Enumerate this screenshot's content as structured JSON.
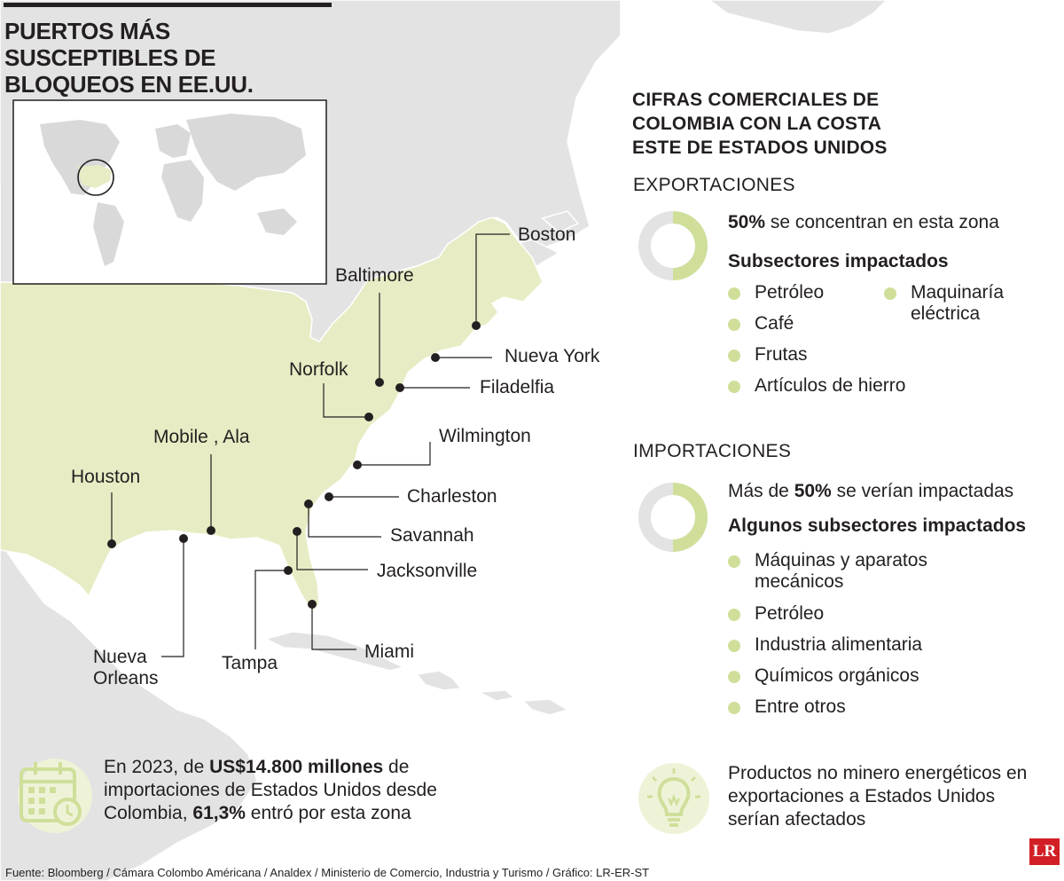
{
  "title": "PUERTOS MÁS SUSCEPTIBLES DE BLOQUEOS EN EE.UU.",
  "ports": [
    {
      "id": "boston",
      "name": "Boston"
    },
    {
      "id": "baltimore",
      "name": "Baltimore"
    },
    {
      "id": "nueva-york",
      "name": "Nueva York"
    },
    {
      "id": "norfolk",
      "name": "Norfolk"
    },
    {
      "id": "filadelfia",
      "name": "Filadelfia"
    },
    {
      "id": "wilmington",
      "name": "Wilmington"
    },
    {
      "id": "mobile",
      "name": "Mobile , Ala"
    },
    {
      "id": "houston",
      "name": "Houston"
    },
    {
      "id": "charleston",
      "name": "Charleston"
    },
    {
      "id": "savannah",
      "name": "Savannah"
    },
    {
      "id": "jacksonville",
      "name": "Jacksonville"
    },
    {
      "id": "nueva-orleans",
      "name": "Nueva Orleans"
    },
    {
      "id": "tampa",
      "name": "Tampa"
    },
    {
      "id": "miami",
      "name": "Miami"
    }
  ],
  "trade": {
    "heading": "CIFRAS COMERCIALES DE COLOMBIA CON LA COSTA ESTE DE ESTADOS UNIDOS",
    "exports": {
      "label": "EXPORTACIONES",
      "share_percent": 50,
      "stat_bold": "50%",
      "stat_rest": " se concentran en esta zona",
      "subtitle": "Subsectores impactados",
      "items_col1": [
        "Petróleo",
        "Café",
        "Frutas",
        "Artículos de hierro"
      ],
      "items_col2": [
        "Maquinaría eléctrica"
      ]
    },
    "imports": {
      "label": "IMPORTACIONES",
      "share_percent": 50,
      "stat_pre": "Más de ",
      "stat_bold": "50%",
      "stat_rest": " se verían impactadas",
      "subtitle": "Algunos subsectores impactados",
      "items": [
        "Máquinas y aparatos mecánicos",
        "Petróleo",
        "Industria alimentaria",
        "Químicos orgánicos",
        "Entre otros"
      ]
    }
  },
  "footnote_left": {
    "t1": "En 2023, de ",
    "b1": "US$14.800 millones",
    "t2": " de importaciones de Estados Unidos desde Colombia, ",
    "b2": "61,3%",
    "t3": " entró por esta zona",
    "icon": "calendar-clock-icon"
  },
  "footnote_right": {
    "text": "Productos no minero energéticos en exportaciones a Estados Unidos serían afectados",
    "icon": "lightbulb-icon"
  },
  "source": "Fuente: Bloomberg / Cámara Colombo Américana / Analdex / Ministerio de Comercio, Industria y Turismo / Gráfico: LR-ER-ST",
  "logo": "LR",
  "colors": {
    "land_us": "#e8ecc4",
    "land_other": "#e3e3e3",
    "water": "#ffffff",
    "accent_green": "#cfdf9a",
    "text": "#231f20",
    "logo_red": "#d21f26"
  }
}
